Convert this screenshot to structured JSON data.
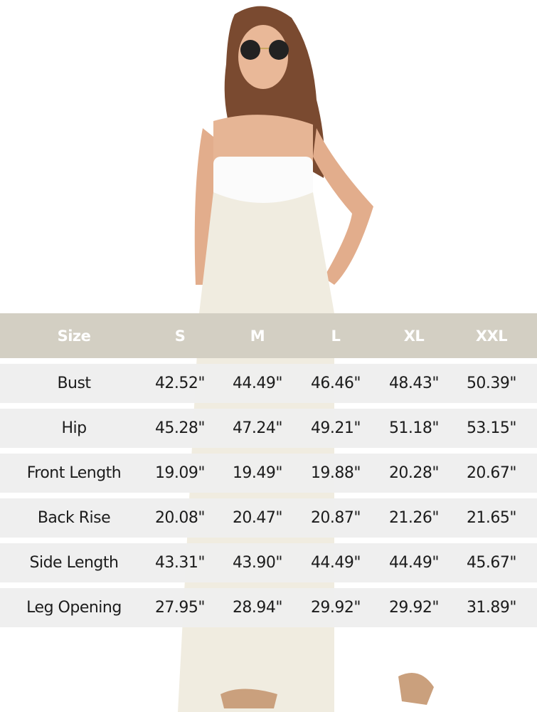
{
  "size_chart": {
    "header": [
      "Size",
      "S",
      "M",
      "L",
      "XL",
      "XXL"
    ],
    "rows": [
      {
        "label": "Bust",
        "values": [
          "42.52\"",
          "44.49\"",
          "46.46\"",
          "48.43\"",
          "50.39\""
        ]
      },
      {
        "label": "Hip",
        "values": [
          "45.28\"",
          "47.24\"",
          "49.21\"",
          "51.18\"",
          "53.15\""
        ]
      },
      {
        "label": "Front Length",
        "values": [
          "19.09\"",
          "19.49\"",
          "19.88\"",
          "20.28\"",
          "20.67\""
        ]
      },
      {
        "label": "Back Rise",
        "values": [
          "20.08\"",
          "20.47\"",
          "20.87\"",
          "21.26\"",
          "21.65\""
        ]
      },
      {
        "label": "Side Length",
        "values": [
          "43.31\"",
          "43.90\"",
          "44.49\"",
          "44.49\"",
          "45.67\""
        ]
      },
      {
        "label": "Leg Opening",
        "values": [
          "27.95\"",
          "28.94\"",
          "29.92\"",
          "29.92\"",
          "31.89\""
        ]
      }
    ],
    "colors": {
      "header_bg": "#d3cfc3",
      "row_bg": "#eeeeee",
      "header_text": "#ffffff",
      "text": "#1c1c1c"
    }
  }
}
